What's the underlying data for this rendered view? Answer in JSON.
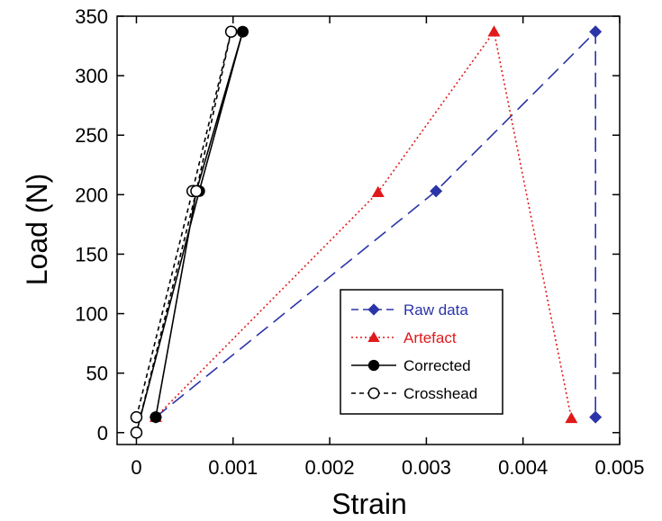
{
  "chart_data": {
    "type": "line",
    "title": "",
    "xlabel": "Strain",
    "ylabel": "Load (N)",
    "xlim": [
      -0.0002,
      0.005
    ],
    "ylim": [
      -10,
      350
    ],
    "xticks": [
      0,
      0.001,
      0.002,
      0.003,
      0.004,
      0.005
    ],
    "xtick_labels": [
      "0",
      "0.001",
      "0.002",
      "0.003",
      "0.004",
      "0.005"
    ],
    "yticks": [
      0,
      50,
      100,
      150,
      200,
      250,
      300,
      350
    ],
    "ytick_labels": [
      "0",
      "50",
      "100",
      "150",
      "200",
      "250",
      "300",
      "350"
    ],
    "grid": false,
    "legend_position": "bottom-right",
    "series": [
      {
        "name": "Raw data",
        "color": "#2b35a8",
        "line_style": "long-dash",
        "marker": "diamond",
        "points": [
          [
            0.0002,
            13
          ],
          [
            0.0031,
            203
          ],
          [
            0.00475,
            337
          ],
          [
            0.00475,
            13
          ]
        ]
      },
      {
        "name": "Artefact",
        "color": "#e0191b",
        "line_style": "dotted",
        "marker": "triangle",
        "points": [
          [
            0.0002,
            13
          ],
          [
            0.0025,
            202
          ],
          [
            0.0037,
            337
          ],
          [
            0.0045,
            12
          ]
        ]
      },
      {
        "name": "Corrected",
        "color": "#000000",
        "line_style": "solid",
        "marker": "filled-circle",
        "points": [
          [
            0,
            0
          ],
          [
            0.00065,
            203
          ],
          [
            0.0011,
            337
          ],
          [
            0.00062,
            203
          ],
          [
            0.0002,
            13
          ]
        ]
      },
      {
        "name": "Crosshead",
        "color": "#000000",
        "line_style": "dashed",
        "marker": "open-circle",
        "points": [
          [
            0,
            13
          ],
          [
            0.00058,
            203
          ],
          [
            0.00098,
            337
          ],
          [
            0.00062,
            203
          ],
          [
            0,
            0
          ]
        ]
      }
    ]
  }
}
